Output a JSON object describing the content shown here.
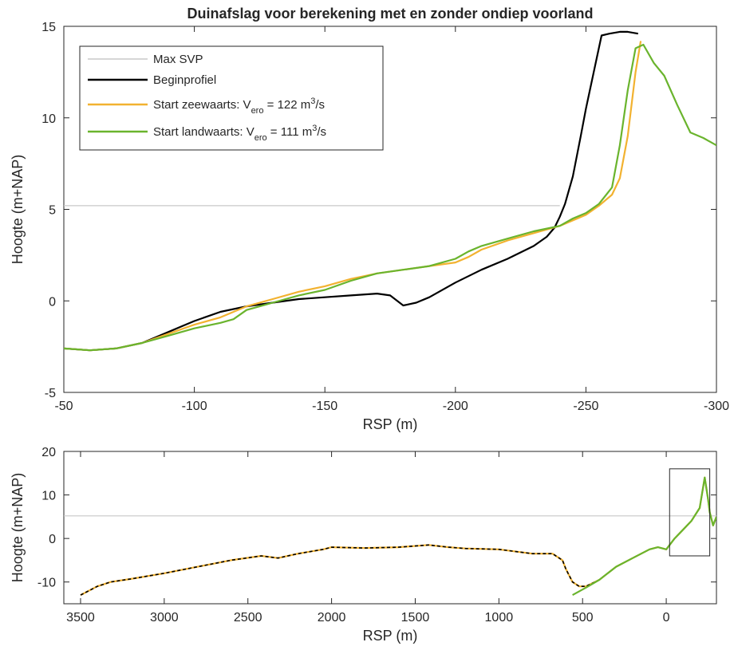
{
  "chart_data": [
    {
      "type": "line",
      "title": "Duinafslag voor berekening met en zonder ondiep voorland",
      "xlabel": "RSP (m)",
      "ylabel": "Hoogte (m+NAP)",
      "xlim": [
        -50,
        -300
      ],
      "xdir": "reverse",
      "ylim": [
        -5,
        15
      ],
      "xticks": [
        -50,
        -100,
        -150,
        -200,
        -250,
        -300
      ],
      "yticks": [
        -5,
        0,
        5,
        10,
        15
      ],
      "grid": false,
      "legend_placement": "top-left",
      "series": [
        {
          "name": "Max SVP",
          "color": "#c8c8c8",
          "x": [
            -50,
            -240
          ],
          "y": [
            5.2,
            5.2
          ]
        },
        {
          "name": "Beginprofiel",
          "color": "#000000",
          "x": [
            -50,
            -60,
            -70,
            -80,
            -90,
            -95,
            -100,
            -110,
            -120,
            -130,
            -140,
            -150,
            -160,
            -170,
            -175,
            -180,
            -185,
            -190,
            -200,
            -210,
            -220,
            -230,
            -235,
            -238,
            -240,
            -242,
            -245,
            -248,
            -250,
            -253,
            -256,
            -259,
            -263,
            -266,
            -270
          ],
          "y": [
            -2.6,
            -2.7,
            -2.6,
            -2.3,
            -1.7,
            -1.4,
            -1.1,
            -0.6,
            -0.3,
            -0.1,
            0.1,
            0.2,
            0.3,
            0.4,
            0.3,
            -0.25,
            -0.1,
            0.2,
            1.0,
            1.7,
            2.3,
            3.0,
            3.5,
            4.0,
            4.6,
            5.3,
            6.8,
            9.0,
            10.5,
            12.5,
            14.5,
            14.6,
            14.7,
            14.7,
            14.6
          ]
        },
        {
          "name": "Start zeewaarts: V_ero = 122 m³/s",
          "legend_main": "Start zeewaarts:  V",
          "legend_sub": "ero",
          "legend_mid": " = 122 m",
          "legend_sup": "3",
          "legend_end": "/s",
          "color": "#f2b230",
          "x": [
            -50,
            -60,
            -70,
            -80,
            -90,
            -100,
            -110,
            -120,
            -130,
            -140,
            -150,
            -160,
            -170,
            -180,
            -190,
            -200,
            -205,
            -210,
            -220,
            -230,
            -240,
            -245,
            -250,
            -255,
            -260,
            -263,
            -266,
            -269,
            -271
          ],
          "y": [
            -2.6,
            -2.7,
            -2.6,
            -2.3,
            -1.8,
            -1.3,
            -0.9,
            -0.3,
            0.1,
            0.5,
            0.8,
            1.2,
            1.5,
            1.7,
            1.9,
            2.1,
            2.4,
            2.8,
            3.3,
            3.7,
            4.1,
            4.4,
            4.7,
            5.2,
            5.8,
            6.7,
            9.0,
            12.5,
            14.2
          ]
        },
        {
          "name": "Start landwaarts: V_ero = 111 m³/s",
          "legend_main": "Start landwaarts: V",
          "legend_sub": "ero",
          "legend_mid": " = 111 m",
          "legend_sup": "3",
          "legend_end": "/s",
          "color": "#6ab42d",
          "x": [
            -50,
            -60,
            -70,
            -80,
            -90,
            -100,
            -110,
            -115,
            -120,
            -130,
            -140,
            -150,
            -160,
            -170,
            -180,
            -190,
            -200,
            -205,
            -210,
            -220,
            -230,
            -240,
            -245,
            -250,
            -255,
            -260,
            -263,
            -266,
            -269,
            -272,
            -276,
            -280,
            -285,
            -290,
            -295,
            -300
          ],
          "y": [
            -2.6,
            -2.7,
            -2.6,
            -2.3,
            -1.9,
            -1.5,
            -1.2,
            -1.0,
            -0.5,
            -0.1,
            0.3,
            0.6,
            1.1,
            1.5,
            1.7,
            1.9,
            2.3,
            2.7,
            3.0,
            3.4,
            3.8,
            4.1,
            4.5,
            4.8,
            5.3,
            6.2,
            8.5,
            11.5,
            13.8,
            14.0,
            13.0,
            12.3,
            10.7,
            9.2,
            8.9,
            8.5
          ]
        }
      ]
    },
    {
      "type": "line",
      "title": "",
      "xlabel": "RSP (m)",
      "ylabel": "Hoogte (m+NAP)",
      "xlim": [
        3600,
        -300
      ],
      "xdir": "reverse",
      "ylim": [
        -15,
        20
      ],
      "xticks": [
        3500,
        3000,
        2500,
        2000,
        1500,
        1000,
        500,
        0
      ],
      "yticks": [
        -10,
        0,
        10,
        20
      ],
      "grid": false,
      "zoom_box": {
        "x": [
          -20,
          -260
        ],
        "y": [
          -4,
          16
        ]
      },
      "series": [
        {
          "name": "Max SVP",
          "color": "#c8c8c8",
          "x": [
            3600,
            -300
          ],
          "y": [
            5.2,
            5.2
          ]
        },
        {
          "name": "Start zeewaarts",
          "color": "#f2b230",
          "x": [
            3500,
            3400,
            3320,
            3200,
            3000,
            2800,
            2600,
            2420,
            2320,
            2200,
            2050,
            2000,
            1800,
            1600,
            1420,
            1300,
            1200,
            1000,
            800,
            680,
            620,
            600,
            560,
            520,
            480,
            400,
            300,
            200,
            100,
            50,
            0,
            -50,
            -100,
            -150,
            -200,
            -230,
            -250,
            -260,
            -280,
            -300
          ],
          "y": [
            -13,
            -11,
            -10,
            -9.3,
            -8,
            -6.5,
            -5,
            -4,
            -4.5,
            -3.5,
            -2.5,
            -2,
            -2.2,
            -2,
            -1.5,
            -2,
            -2.3,
            -2.5,
            -3.5,
            -3.5,
            -5,
            -7,
            -10,
            -11,
            -11,
            -9.5,
            -6.5,
            -4.5,
            -2.5,
            -2,
            -2.5,
            0,
            2,
            4,
            7,
            14,
            9,
            6,
            3,
            5
          ]
        },
        {
          "name": "Beginprofiel",
          "color": "#000000",
          "dashed": true,
          "x": [
            3500,
            3400,
            3320,
            3200,
            3000,
            2800,
            2600,
            2420,
            2320,
            2200,
            2050,
            2000,
            1800,
            1600,
            1420,
            1300,
            1200,
            1000,
            800,
            680,
            620,
            600,
            560,
            520,
            480,
            400,
            300,
            200,
            100,
            50,
            0,
            -50,
            -100,
            -150,
            -200,
            -230,
            -250,
            -260,
            -280,
            -300
          ],
          "y": [
            -13,
            -11,
            -10,
            -9.3,
            -8,
            -6.5,
            -5,
            -4,
            -4.5,
            -3.5,
            -2.5,
            -2,
            -2.2,
            -2,
            -1.5,
            -2,
            -2.3,
            -2.5,
            -3.5,
            -3.5,
            -5,
            -7,
            -10,
            -11,
            -11,
            -9.5,
            -6.5,
            -4.5,
            -2.5,
            -2,
            -2.5,
            0,
            2,
            4,
            7,
            14,
            9,
            6,
            3,
            5
          ]
        },
        {
          "name": "Start landwaarts",
          "color": "#6ab42d",
          "x": [
            560,
            480,
            400,
            300,
            200,
            100,
            50,
            0,
            -50,
            -100,
            -150,
            -200,
            -230,
            -250,
            -260,
            -280,
            -300
          ],
          "y": [
            -13,
            -11.3,
            -9.5,
            -6.5,
            -4.5,
            -2.5,
            -2,
            -2.5,
            0,
            2,
            4,
            7,
            14,
            9,
            6,
            3,
            5
          ]
        }
      ]
    }
  ],
  "legend": {
    "items": [
      {
        "label": "Max SVP",
        "color": "#c8c8c8"
      },
      {
        "label": "Beginprofiel",
        "color": "#000000"
      }
    ]
  }
}
